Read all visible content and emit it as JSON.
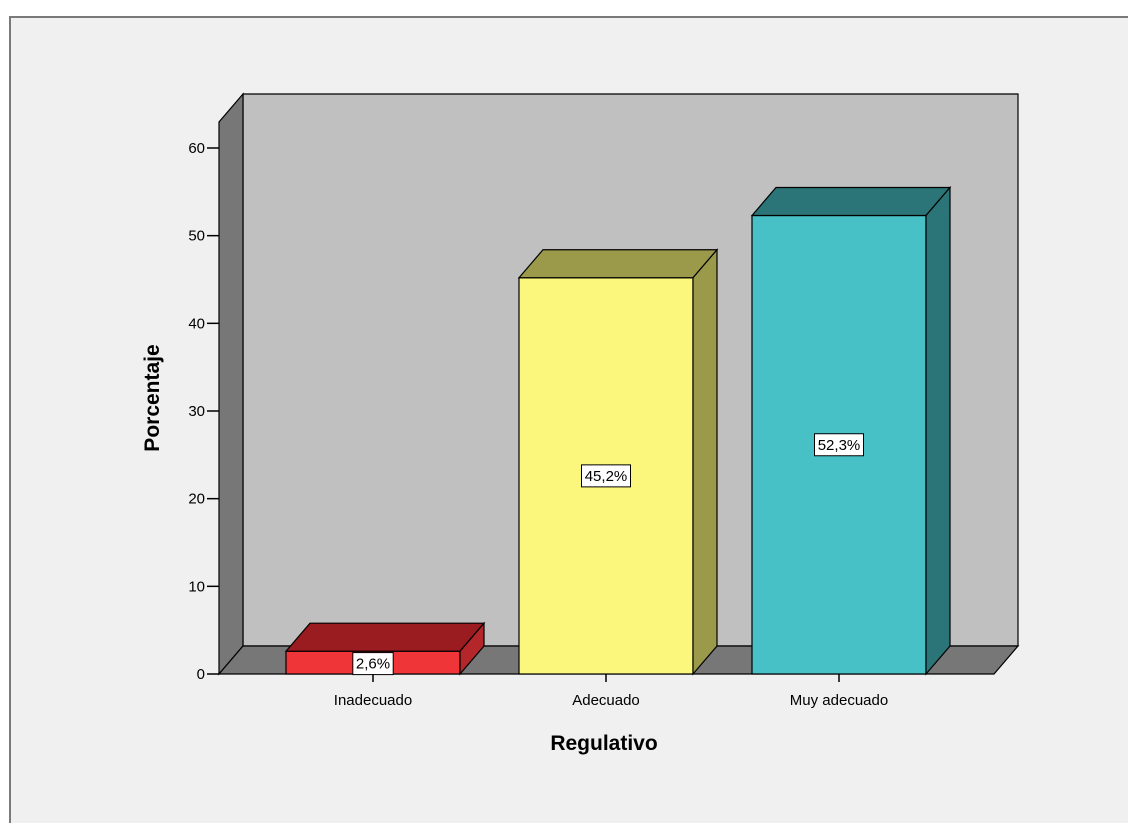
{
  "chart_data": {
    "type": "bar",
    "style": "3d",
    "categories": [
      "Inadecuado",
      "Adecuado",
      "Muy adecuado"
    ],
    "values": [
      2.6,
      45.2,
      52.3
    ],
    "data_labels": [
      "2,6%",
      "45,2%",
      "52,3%"
    ],
    "xlabel": "Regulativo",
    "ylabel": "Porcentaje",
    "ylim": [
      0,
      60
    ],
    "yticks": [
      0,
      10,
      20,
      30,
      40,
      50,
      60
    ],
    "grid": false,
    "colors": {
      "bars": [
        {
          "front": "#ef3538",
          "top": "#9a1b20",
          "side": "#b3262a"
        },
        {
          "front": "#fbf77c",
          "top": "#9b9a4b",
          "side": "#9b9a4b"
        },
        {
          "front": "#47c0c6",
          "top": "#2b7478",
          "side": "#2b7478"
        }
      ],
      "wall_back": "#c0c0c0",
      "wall_side": "#777777",
      "floor": "#777777",
      "background": "#f0f0f0"
    }
  }
}
